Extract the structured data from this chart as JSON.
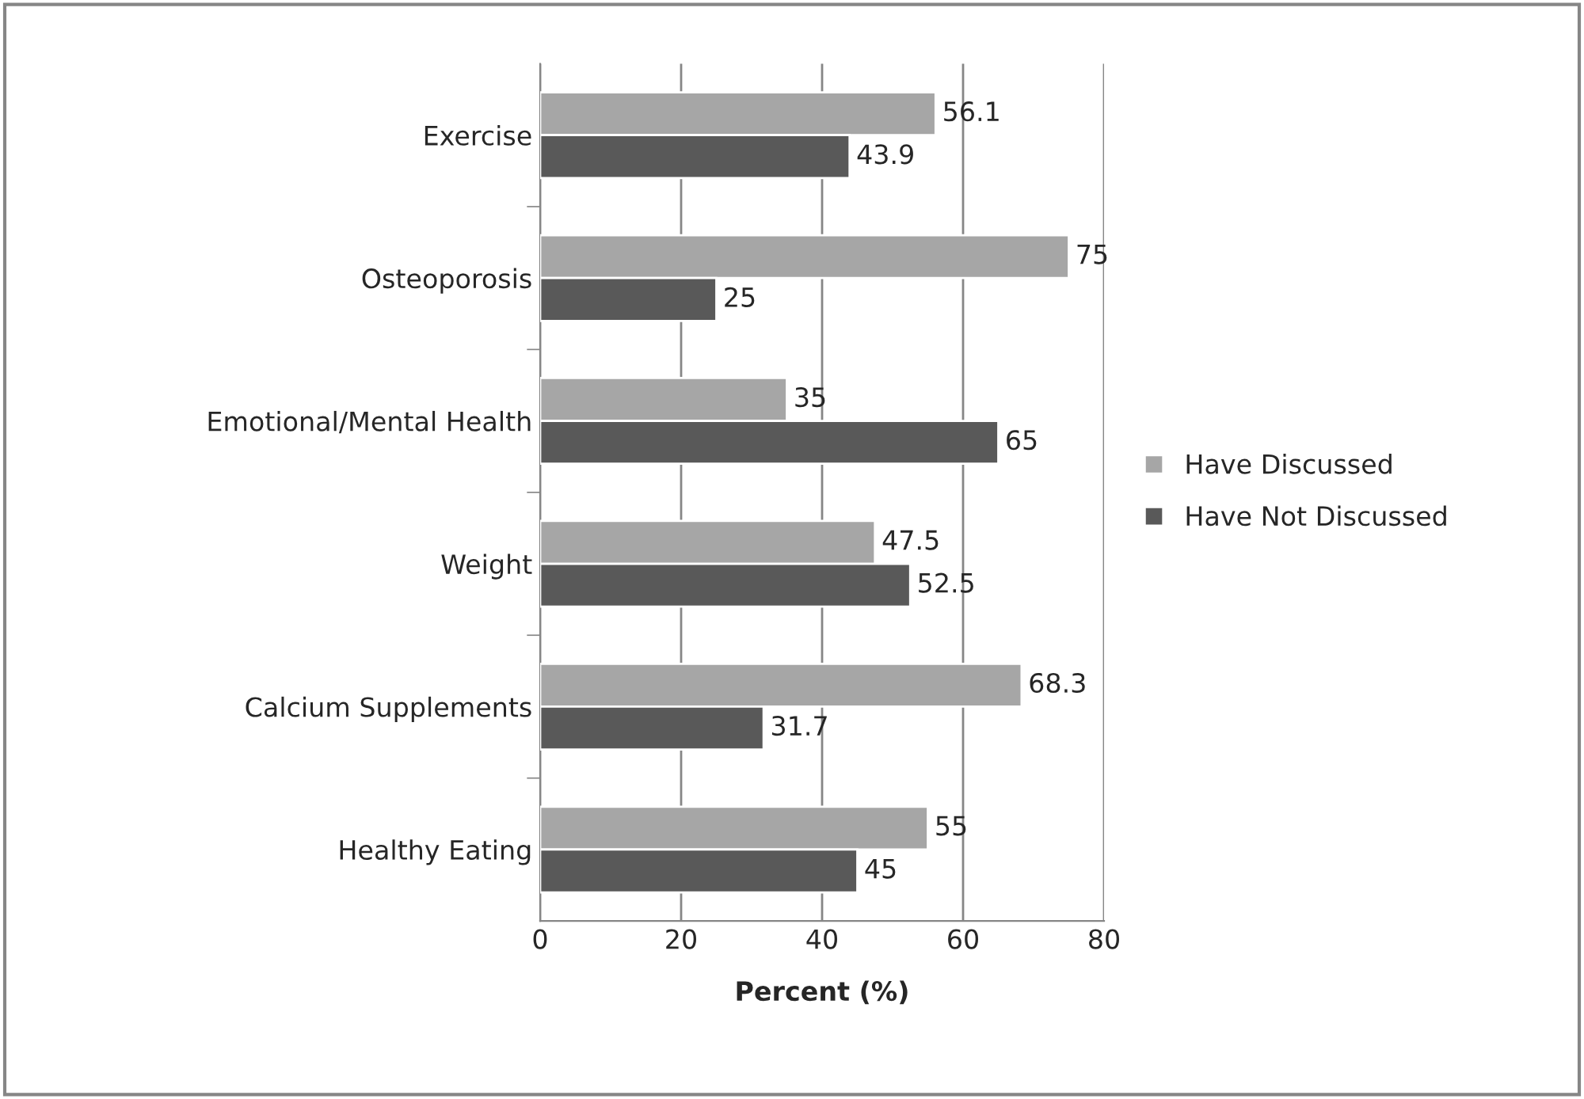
{
  "chart_data": {
    "type": "bar",
    "orientation": "horizontal",
    "xlabel": "Percent (%)",
    "categories": [
      "Exercise",
      "Osteoporosis",
      "Emotional/Mental Health",
      "Weight",
      "Calcium Supplements",
      "Healthy Eating"
    ],
    "series": [
      {
        "name": "Have Discussed",
        "color": "#a6a6a6",
        "values": [
          56.1,
          75,
          35,
          47.5,
          68.3,
          55
        ]
      },
      {
        "name": "Have Not Discussed",
        "color": "#595959",
        "values": [
          43.9,
          25,
          65,
          52.5,
          31.7,
          45
        ]
      }
    ],
    "xlim": [
      0,
      80
    ],
    "xticks": [
      0,
      20,
      40,
      60,
      80
    ],
    "grid": "x",
    "legend": "right",
    "data_labels": true
  }
}
